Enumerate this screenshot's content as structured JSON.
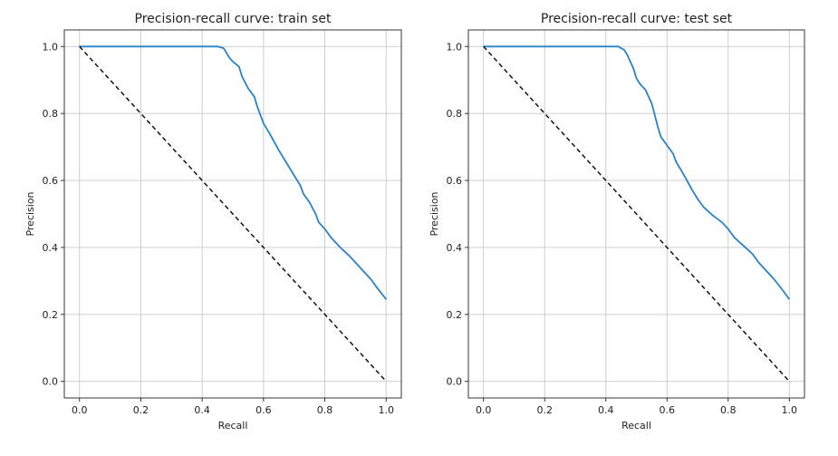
{
  "chart_data": [
    {
      "type": "line",
      "title": "Precision-recall curve: train set",
      "xlabel": "Recall",
      "ylabel": "Precision",
      "xlim": [
        0.0,
        1.0
      ],
      "ylim": [
        0.0,
        1.0
      ],
      "xticks": [
        "0.0",
        "0.2",
        "0.4",
        "0.6",
        "0.8",
        "1.0"
      ],
      "yticks": [
        "0.0",
        "0.2",
        "0.4",
        "0.6",
        "0.8",
        "1.0"
      ],
      "grid": true,
      "series": [
        {
          "style": "solid",
          "color": "#2a82c8",
          "x": [
            0.0,
            0.1,
            0.2,
            0.3,
            0.4,
            0.45,
            0.47,
            0.48,
            0.49,
            0.5,
            0.52,
            0.53,
            0.55,
            0.57,
            0.58,
            0.6,
            0.62,
            0.65,
            0.68,
            0.7,
            0.72,
            0.73,
            0.75,
            0.77,
            0.78,
            0.8,
            0.82,
            0.85,
            0.88,
            0.9,
            0.92,
            0.95,
            0.97,
            1.0
          ],
          "y": [
            1.0,
            1.0,
            1.0,
            1.0,
            1.0,
            1.0,
            0.995,
            0.98,
            0.965,
            0.955,
            0.94,
            0.91,
            0.875,
            0.85,
            0.82,
            0.77,
            0.74,
            0.69,
            0.645,
            0.615,
            0.585,
            0.56,
            0.535,
            0.5,
            0.475,
            0.455,
            0.43,
            0.4,
            0.375,
            0.355,
            0.335,
            0.305,
            0.28,
            0.245
          ]
        },
        {
          "style": "dashed",
          "color": "#111111",
          "x": [
            0.0,
            1.0
          ],
          "y": [
            1.0,
            0.0
          ]
        }
      ]
    },
    {
      "type": "line",
      "title": "Precision-recall curve: test set",
      "xlabel": "Recall",
      "ylabel": "Precision",
      "xlim": [
        0.0,
        1.0
      ],
      "ylim": [
        0.0,
        1.0
      ],
      "xticks": [
        "0.0",
        "0.2",
        "0.4",
        "0.6",
        "0.8",
        "1.0"
      ],
      "yticks": [
        "0.0",
        "0.2",
        "0.4",
        "0.6",
        "0.8",
        "1.0"
      ],
      "grid": true,
      "series": [
        {
          "style": "solid",
          "color": "#2a82c8",
          "x": [
            0.0,
            0.1,
            0.2,
            0.3,
            0.4,
            0.44,
            0.46,
            0.47,
            0.48,
            0.49,
            0.5,
            0.51,
            0.53,
            0.55,
            0.56,
            0.57,
            0.58,
            0.6,
            0.62,
            0.63,
            0.65,
            0.68,
            0.7,
            0.72,
            0.75,
            0.78,
            0.8,
            0.82,
            0.85,
            0.88,
            0.9,
            0.92,
            0.95,
            0.98,
            1.0
          ],
          "y": [
            1.0,
            1.0,
            1.0,
            1.0,
            1.0,
            1.0,
            0.99,
            0.975,
            0.955,
            0.935,
            0.905,
            0.89,
            0.87,
            0.83,
            0.795,
            0.76,
            0.73,
            0.705,
            0.68,
            0.655,
            0.625,
            0.575,
            0.545,
            0.52,
            0.495,
            0.475,
            0.455,
            0.43,
            0.405,
            0.38,
            0.355,
            0.335,
            0.305,
            0.27,
            0.245
          ]
        },
        {
          "style": "dashed",
          "color": "#111111",
          "x": [
            0.0,
            1.0
          ],
          "y": [
            1.0,
            0.0
          ]
        }
      ]
    }
  ]
}
